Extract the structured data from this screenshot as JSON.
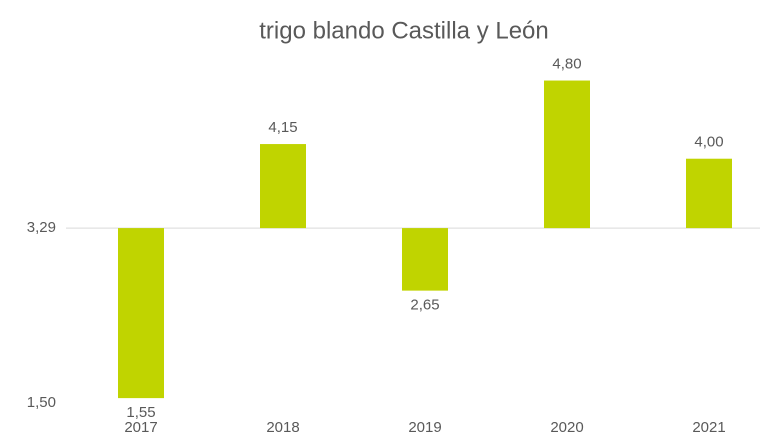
{
  "chart_data": {
    "type": "bar",
    "title": "trigo blando Castilla y León",
    "categories": [
      "2017",
      "2018",
      "2019",
      "2020",
      "2021"
    ],
    "values": [
      1.55,
      4.15,
      2.65,
      4.8,
      4.0
    ],
    "value_labels": [
      "1,55",
      "4,15",
      "2,65",
      "4,80",
      "4,00"
    ],
    "color": "#c0d400",
    "ylim": [
      1.5,
      5.0
    ],
    "yticks": [
      {
        "value": 1.5,
        "label": "1,50"
      },
      {
        "value": 3.29,
        "label": "3,29"
      }
    ],
    "x_axis_at": 3.29
  }
}
